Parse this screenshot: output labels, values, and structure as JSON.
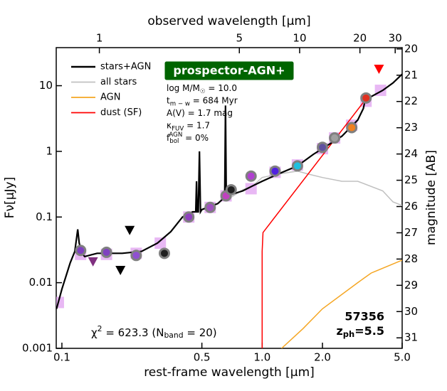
{
  "chart_data": {
    "type": "sed",
    "xlabel": "rest-frame wavelength [μm]",
    "x2label": "observed wavelength [μm]",
    "ylabel": "Fν[μJy]",
    "y2label": "magnitude [AB]",
    "xscale": "log",
    "yscale": "log",
    "xlim": [
      0.0937,
      5.0
    ],
    "xticks": [
      0.1,
      0.5,
      {
        "value": 1.0,
        "label": "1.0"
      },
      {
        "value": 2.0,
        "label": "2.0"
      },
      {
        "value": 5.0,
        "label": "5.0"
      }
    ],
    "x2lim": [
      0.609,
      32.5
    ],
    "x2ticks": [
      1,
      5,
      10,
      20,
      30
    ],
    "ylim": [
      0.001,
      38
    ],
    "yticks": [
      0.001,
      0.01,
      0.1,
      1,
      10
    ],
    "y2lim": [
      31.4,
      19.95
    ],
    "y2ticks": [
      20,
      21,
      22,
      23,
      24,
      25,
      26,
      27,
      28,
      29,
      30,
      31
    ],
    "model_label": "prospector-AGN+",
    "params": [
      [
        {
          "text": "log M/M"
        },
        {
          "text": "☉",
          "shift": "sub"
        },
        {
          "text": " = 10.0"
        }
      ],
      [
        {
          "text": "t"
        },
        {
          "text": "m − w",
          "shift": "sub"
        },
        {
          "text": " = 684 Myr"
        }
      ],
      [
        {
          "text": "A(V) = 1.7 mag"
        }
      ],
      [
        {
          "text": "κ"
        },
        {
          "text": "FUV",
          "shift": "sub"
        },
        {
          "text": " = 1.7"
        }
      ],
      [
        {
          "text": "f"
        },
        {
          "text": "bol",
          "shift": "sub"
        },
        {
          "text": "AGN",
          "shift": "sup"
        },
        {
          "text": " = 0%"
        }
      ]
    ],
    "chi": [
      {
        "text": "χ"
      },
      {
        "text": "2",
        "shift": "sup"
      },
      {
        "text": " = 623.3 (N"
      },
      {
        "text": "band",
        "shift": "sub"
      },
      {
        "text": " = 20)"
      }
    ],
    "object_id": "57356",
    "redshift": [
      {
        "text": "z"
      },
      {
        "text": "ph",
        "shift": "sub"
      },
      {
        "text": "=5.5"
      }
    ],
    "series": [
      {
        "name": "stars+AGN",
        "color": "#000000",
        "x": [
          0.094,
          0.1,
          0.11,
          0.116,
          0.12,
          0.122,
          0.126,
          0.13,
          0.15,
          0.2,
          0.25,
          0.3,
          0.35,
          0.4,
          0.45,
          0.466,
          0.47,
          0.474,
          0.48,
          0.486,
          0.492,
          0.5,
          0.6,
          0.65,
          0.656,
          0.662,
          0.7,
          0.8,
          0.9,
          1.0,
          1.2,
          1.5,
          1.8,
          2.0,
          2.5,
          3.0,
          3.2,
          3.3,
          3.4,
          4.0,
          4.5,
          5.0
        ],
        "values": [
          0.004,
          0.008,
          0.02,
          0.03,
          0.065,
          0.04,
          0.028,
          0.025,
          0.028,
          0.028,
          0.03,
          0.04,
          0.06,
          0.1,
          0.12,
          0.12,
          0.35,
          0.12,
          0.12,
          1.0,
          0.12,
          0.13,
          0.16,
          0.2,
          5.0,
          0.2,
          0.22,
          0.25,
          0.3,
          0.35,
          0.45,
          0.6,
          0.9,
          1.1,
          1.7,
          3.0,
          4.5,
          7.0,
          6.5,
          8.5,
          11,
          15
        ]
      },
      {
        "name": "all stars",
        "color": "#c0c0c0",
        "x": [
          0.7,
          0.8,
          0.9,
          1.0,
          1.2,
          1.5,
          1.7,
          2.0,
          2.5,
          3.0,
          4.0,
          4.5,
          5.0
        ],
        "values": [
          0.2,
          0.26,
          0.3,
          0.4,
          0.45,
          0.5,
          0.45,
          0.4,
          0.35,
          0.35,
          0.25,
          0.17,
          0.15
        ]
      },
      {
        "name": "AGN",
        "color": "#f5a623",
        "x": [
          1.25,
          1.6,
          2.0,
          3.0,
          3.5,
          5.0
        ],
        "values": [
          0.001,
          0.002,
          0.004,
          0.01,
          0.014,
          0.022
        ]
      },
      {
        "name": "dust (SF)",
        "color": "#ff0000",
        "x": [
          1.0,
          1.0,
          1.01,
          3.3
        ],
        "values": [
          0.001,
          0.03,
          0.058,
          6.3
        ]
      }
    ],
    "photometry": {
      "x": [
        0.124,
        0.167,
        0.235,
        0.325,
        0.43,
        0.55,
        0.66,
        0.7,
        0.88,
        1.16,
        1.5,
        2.0,
        2.3,
        2.8,
        3.3
      ],
      "values": [
        0.031,
        0.029,
        0.026,
        0.028,
        0.1,
        0.14,
        0.21,
        0.26,
        0.42,
        0.5,
        0.6,
        1.15,
        1.6,
        2.3,
        6.5
      ],
      "colors": [
        "#8040c0",
        "#8040c0",
        "#9050d0",
        "#202020",
        "#9040c0",
        "#a050c0",
        "#c040c0",
        "#202020",
        "#b040d0",
        "#5020e0",
        "#20c0e0",
        "#6050a0",
        "#a0a0a0",
        "#f08020",
        "#e03020"
      ]
    },
    "model_photometry": {
      "color": "#e0a0f0",
      "x": [
        0.096,
        0.124,
        0.167,
        0.235,
        0.31,
        0.43,
        0.55,
        0.66,
        0.88,
        1.16,
        1.5,
        2.0,
        2.3,
        2.8,
        3.3,
        3.9
      ],
      "values": [
        0.005,
        0.027,
        0.027,
        0.028,
        0.04,
        0.1,
        0.14,
        0.21,
        0.27,
        0.48,
        0.62,
        1.1,
        1.6,
        2.5,
        5.8,
        8.5
      ]
    },
    "upper_limits": {
      "x": [
        0.143,
        0.196,
        0.218,
        3.83
      ],
      "values": [
        0.021,
        0.0155,
        0.063,
        18
      ],
      "colors": [
        "#803080",
        "#000000",
        "#000000",
        "#ff0000"
      ]
    }
  }
}
